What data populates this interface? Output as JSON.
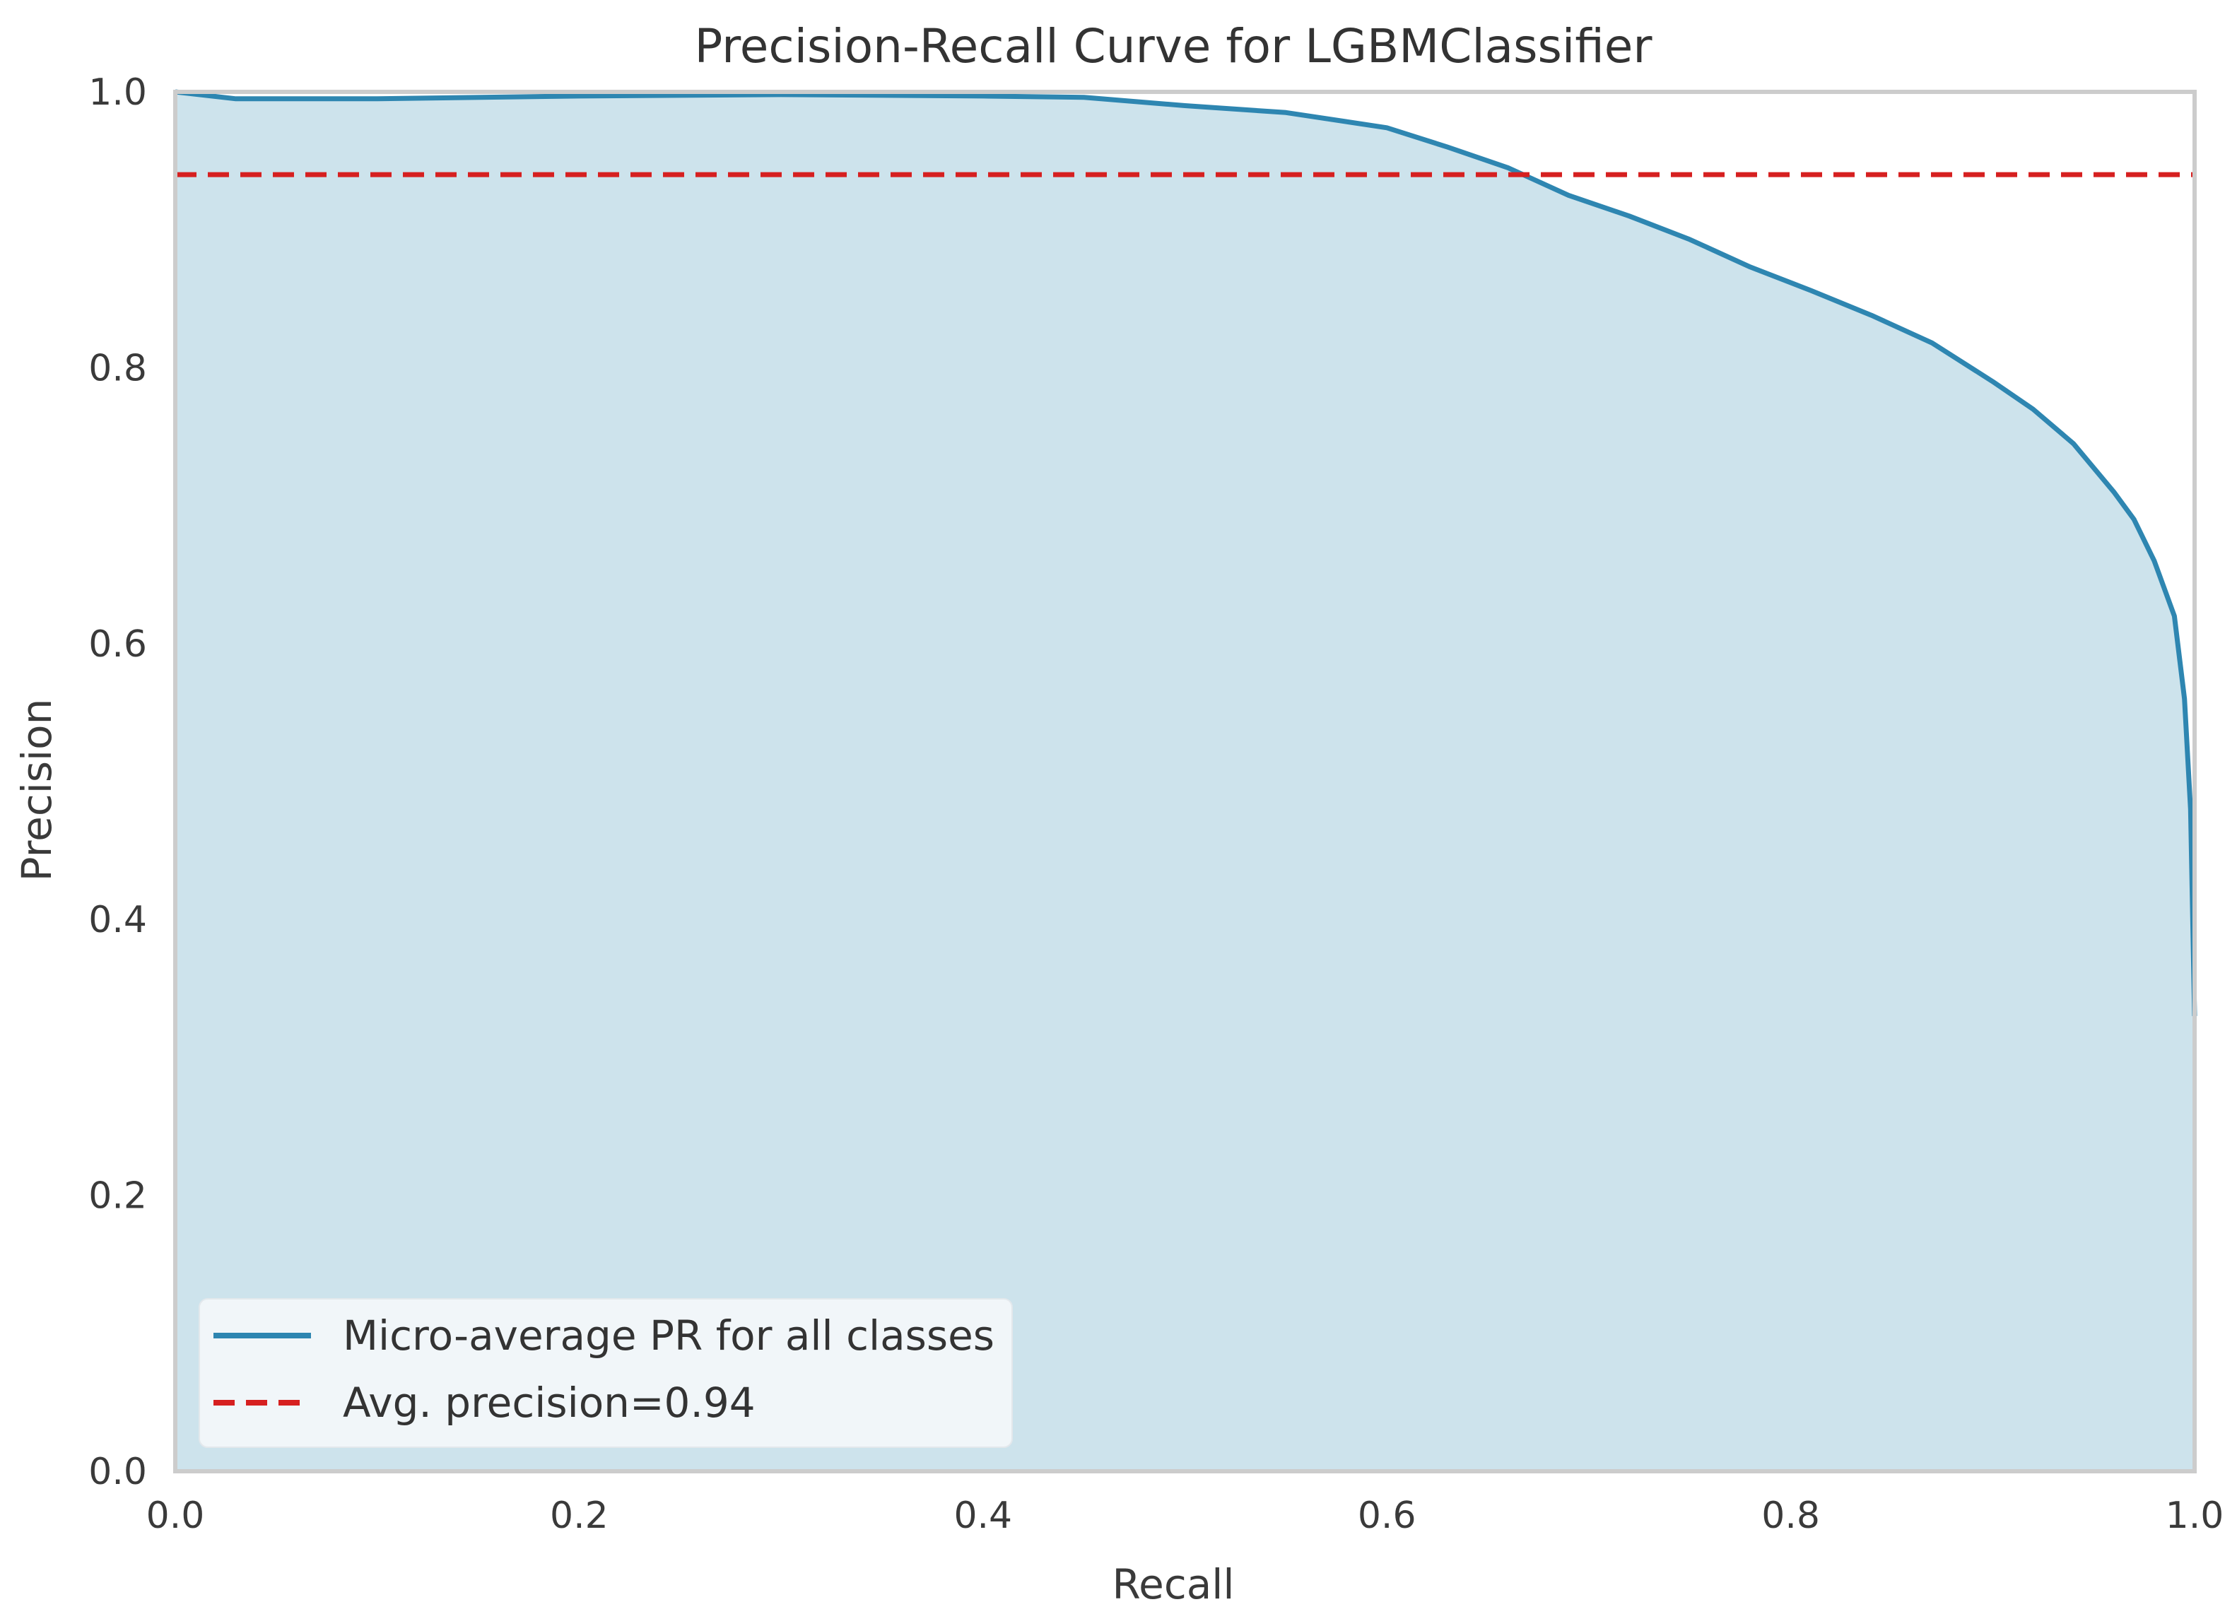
{
  "chart_data": {
    "type": "line",
    "title": "Precision-Recall Curve for LGBMClassifier",
    "xlabel": "Recall",
    "ylabel": "Precision",
    "xlim": [
      0.0,
      1.0
    ],
    "ylim": [
      0.0,
      1.0
    ],
    "grid": false,
    "x_ticks": [
      "0.0",
      "0.2",
      "0.4",
      "0.6",
      "0.8",
      "1.0"
    ],
    "y_ticks": [
      "0.0",
      "0.2",
      "0.4",
      "0.6",
      "0.8",
      "1.0"
    ],
    "legend_position": "lower-left",
    "colors": {
      "curve": "#2e86b1",
      "fill": "#cde3ec",
      "avg_line": "#d62020",
      "frame": "#cccccc",
      "legend_bg": "#f1f6f9"
    },
    "series": [
      {
        "name": "Micro-average PR for all classes",
        "style": "solid",
        "x": [
          0.0,
          0.03,
          0.1,
          0.2,
          0.3,
          0.4,
          0.45,
          0.5,
          0.55,
          0.6,
          0.63,
          0.66,
          0.69,
          0.72,
          0.75,
          0.78,
          0.81,
          0.84,
          0.87,
          0.9,
          0.92,
          0.94,
          0.96,
          0.97,
          0.98,
          0.99,
          0.995,
          0.998,
          1.0
        ],
        "y": [
          1.0,
          0.995,
          0.995,
          0.997,
          0.998,
          0.997,
          0.996,
          0.99,
          0.985,
          0.974,
          0.96,
          0.945,
          0.925,
          0.91,
          0.893,
          0.873,
          0.856,
          0.838,
          0.818,
          0.79,
          0.77,
          0.745,
          0.71,
          0.69,
          0.66,
          0.62,
          0.56,
          0.48,
          0.33
        ]
      },
      {
        "name": "Avg. precision=0.94",
        "style": "dashed",
        "value": 0.94
      }
    ]
  }
}
